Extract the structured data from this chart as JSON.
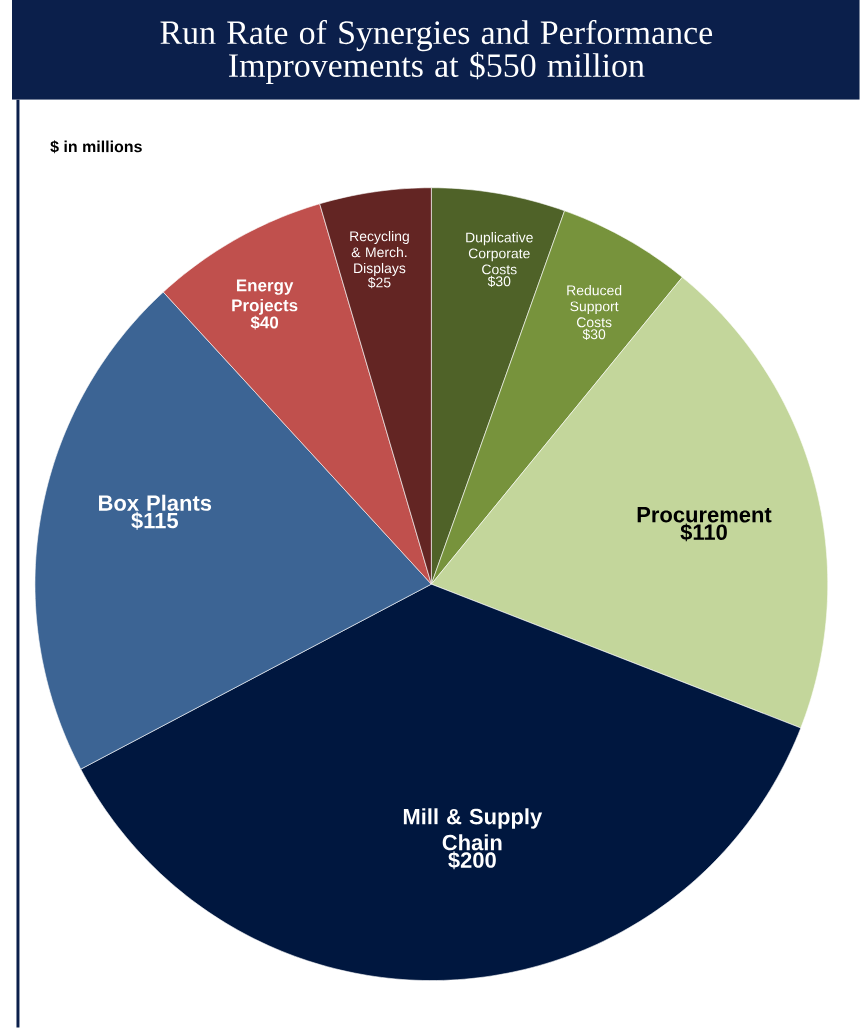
{
  "chart_data": {
    "type": "pie",
    "title": "Run Rate of Synergies and Performance Improvements at $550 million",
    "annotations": [
      "$ in millions"
    ],
    "categories": [
      "Duplicative Corporate Costs",
      "Reduced Support Costs",
      "Procurement",
      "Mill & Supply Chain",
      "Box Plants",
      "Energy Projects",
      "Recycling & Merch. Displays"
    ],
    "values": [
      30,
      30,
      110,
      200,
      115,
      40,
      25
    ],
    "value_labels": [
      "$30",
      "$30",
      "$110",
      "$200",
      "$115",
      "$40",
      "$25"
    ],
    "colors": [
      "#4f6228",
      "#77933c",
      "#c3d69b",
      "#00173f",
      "#3c6494",
      "#c0504d",
      "#632523"
    ]
  }
}
